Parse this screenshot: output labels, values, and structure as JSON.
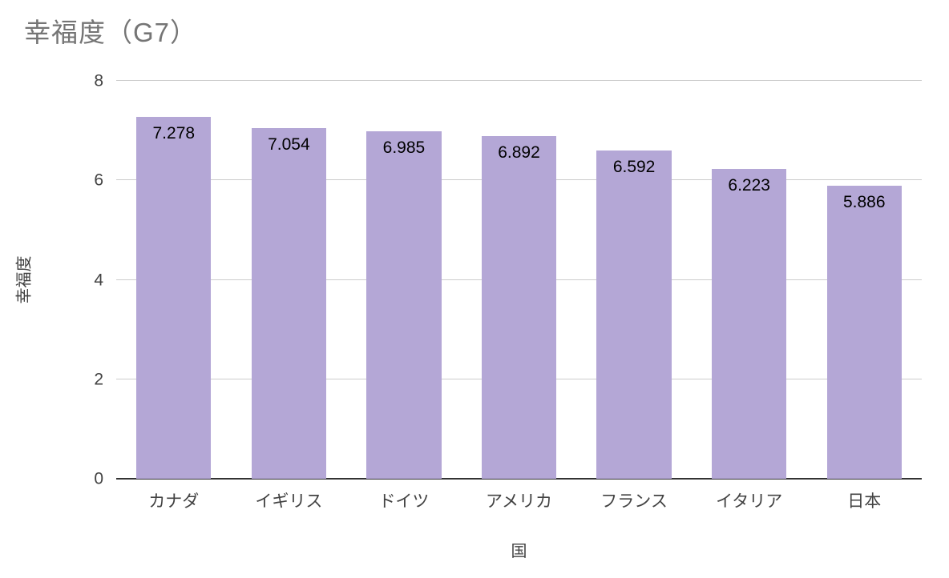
{
  "chart_data": {
    "type": "bar",
    "title": "幸福度（G7）",
    "xlabel": "国",
    "ylabel": "幸福度",
    "categories": [
      "カナダ",
      "イギリス",
      "ドイツ",
      "アメリカ",
      "フランス",
      "イタリア",
      "日本"
    ],
    "values": [
      7.278,
      7.054,
      6.985,
      6.892,
      6.592,
      6.223,
      5.886
    ],
    "value_labels": [
      "7.278",
      "7.054",
      "6.985",
      "6.892",
      "6.592",
      "6.223",
      "5.886"
    ],
    "ylim": [
      0,
      8
    ],
    "yticks": [
      0,
      2,
      4,
      6,
      8
    ],
    "grid": true,
    "legend": "none",
    "bar_color": "#b4a7d6",
    "title_color": "#757575",
    "axis_text_color": "#424242",
    "gridline_color": "#cccccc",
    "baseline_color": "#333333",
    "background_color": "#ffffff"
  }
}
